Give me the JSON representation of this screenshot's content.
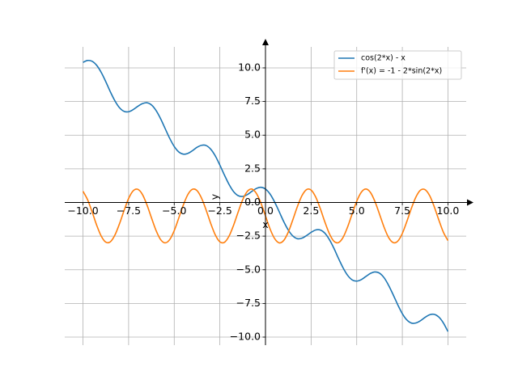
{
  "chart_data": {
    "type": "line",
    "xlabel": "x",
    "ylabel": "y",
    "x": [
      -10,
      -9.75,
      -9.5,
      -9.25,
      -9,
      -8.75,
      -8.5,
      -8.25,
      -8,
      -7.75,
      -7.5,
      -7.25,
      -7,
      -6.75,
      -6.5,
      -6.25,
      -6,
      -5.75,
      -5.5,
      -5.25,
      -5,
      -4.75,
      -4.5,
      -4.25,
      -4,
      -3.75,
      -3.5,
      -3.25,
      -3,
      -2.75,
      -2.5,
      -2.25,
      -2,
      -1.75,
      -1.5,
      -1.25,
      -1,
      -0.75,
      -0.5,
      -0.25,
      0,
      0.25,
      0.5,
      0.75,
      1,
      1.25,
      1.5,
      1.75,
      2,
      2.25,
      2.5,
      2.75,
      3,
      3.25,
      3.5,
      3.75,
      4,
      4.25,
      4.5,
      4.75,
      5,
      5.25,
      5.5,
      5.75,
      6,
      6.25,
      6.5,
      6.75,
      7,
      7.25,
      7.5,
      7.75,
      8,
      8.25,
      8.5,
      8.75,
      9,
      9.25,
      9.5,
      9.75,
      10
    ],
    "series": [
      {
        "name": "cos(2*x) - x",
        "color": "#1f77b4",
        "values": [
          10.41,
          10.55,
          10.49,
          10.19,
          9.66,
          8.97,
          8.22,
          7.55,
          7.04,
          6.77,
          6.74,
          6.9,
          7.14,
          7.34,
          7.41,
          7.25,
          6.84,
          6.23,
          5.5,
          4.77,
          4.16,
          3.75,
          3.59,
          3.65,
          3.85,
          4.1,
          4.25,
          4.23,
          3.96,
          3.46,
          2.78,
          2.04,
          1.35,
          0.81,
          0.51,
          0.45,
          0.58,
          0.82,
          1.04,
          1.13,
          1,
          0.63,
          0.04,
          -0.68,
          -1.42,
          -2.05,
          -2.49,
          -2.69,
          -2.65,
          -2.46,
          -2.22,
          -2.04,
          -2.04,
          -2.27,
          -2.75,
          -3.4,
          -4.15,
          -4.85,
          -5.41,
          -5.75,
          -5.84,
          -5.73,
          -5.5,
          -5.27,
          -5.16,
          -5.25,
          -5.59,
          -6.16,
          -6.86,
          -7.6,
          -8.26,
          -8.73,
          -8.96,
          -8.95,
          -8.78,
          -8.53,
          -8.34,
          -8.31,
          -8.51,
          -8.95,
          -9.59
        ]
      },
      {
        "name": "f'(x) = -1 - 2*sin(2*x)",
        "color": "#ff7f0e",
        "values": [
          0.83,
          0.21,
          -0.7,
          -1.69,
          -2.5,
          -2.95,
          -2.92,
          -2.42,
          -1.58,
          -0.6,
          0.3,
          0.87,
          0.98,
          0.61,
          -0.16,
          -1.13,
          -2.07,
          -2.75,
          -3,
          -2.76,
          -2.09,
          -1.15,
          -0.18,
          0.6,
          0.98,
          0.88,
          0.31,
          -0.57,
          -1.56,
          -2.41,
          -2.92,
          -2.96,
          -2.51,
          -1.7,
          -0.72,
          0.2,
          0.82,
          1,
          0.68,
          -0.04,
          -1,
          -1.96,
          -2.68,
          -3,
          -2.82,
          -2.2,
          -1.28,
          -0.3,
          0.51,
          0.96,
          0.92,
          0.41,
          -0.44,
          -1.43,
          -2.31,
          -2.88,
          -2.98,
          -2.6,
          -1.82,
          -0.85,
          0.09,
          0.76,
          1,
          0.75,
          0.07,
          -0.87,
          -1.84,
          -2.61,
          -2.98,
          -2.87,
          -2.3,
          -1.4,
          -0.42,
          0.42,
          0.92,
          0.95,
          0.5,
          -0.32,
          -1.3,
          -2.21,
          -2.83
        ]
      }
    ],
    "xlim": [
      -11,
      11
    ],
    "ylim": [
      -10.6,
      11.56
    ],
    "xticks": [
      {
        "value": -10,
        "label": "−10.0"
      },
      {
        "value": -7.5,
        "label": "−7.5"
      },
      {
        "value": -5,
        "label": "−5.0"
      },
      {
        "value": -2.5,
        "label": "−2.5"
      },
      {
        "value": 0,
        "label": "0.0"
      },
      2.5,
      {
        "value": 5,
        "label": "5.0"
      },
      7.5,
      {
        "value": 10,
        "label": "10.0"
      }
    ],
    "yticks": [
      {
        "value": -10,
        "label": "−10.0"
      },
      {
        "value": -7.5,
        "label": "−7.5"
      },
      {
        "value": -5,
        "label": "−5.0"
      },
      {
        "value": -2.5,
        "label": "−2.5"
      },
      {
        "value": 0,
        "label": "0.0"
      },
      2.5,
      {
        "value": 5,
        "label": "5.0"
      },
      7.5,
      {
        "value": 10,
        "label": "10.0"
      }
    ],
    "grid": true,
    "legend": "upper right"
  }
}
